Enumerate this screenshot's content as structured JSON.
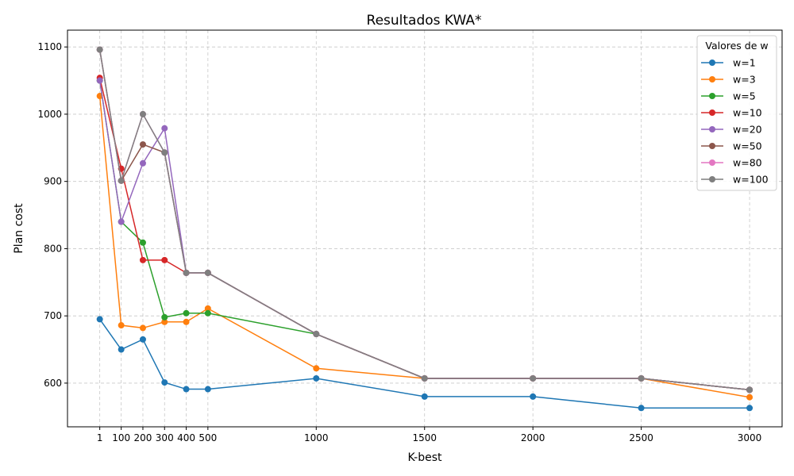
{
  "chart_data": {
    "type": "line",
    "title": "Resultados KWA*",
    "xlabel": "K-best",
    "ylabel": "Plan cost",
    "x": [
      1,
      100,
      200,
      300,
      400,
      500,
      1000,
      1500,
      2000,
      2500,
      3000
    ],
    "xticks": [
      1,
      100,
      200,
      300,
      400,
      500,
      1000,
      1500,
      2000,
      2500,
      3000
    ],
    "yticks": [
      600,
      700,
      800,
      900,
      1000,
      1100
    ],
    "xlim": [
      -148,
      3150
    ],
    "ylim": [
      535,
      1125
    ],
    "grid": true,
    "legend": {
      "title": "Valores de w",
      "placement": "top-right"
    },
    "series": [
      {
        "name": "w=1",
        "color": "#1f77b4",
        "values": [
          695,
          650,
          665,
          601,
          591,
          591,
          607,
          580,
          580,
          563,
          563
        ]
      },
      {
        "name": "w=3",
        "color": "#ff7f0e",
        "values": [
          1027,
          686,
          682,
          691,
          691,
          711,
          622,
          607,
          607,
          607,
          579
        ]
      },
      {
        "name": "w=5",
        "color": "#2ca02c",
        "values": [
          1050,
          840,
          809,
          698,
          704,
          704,
          673,
          607,
          607,
          607,
          590
        ]
      },
      {
        "name": "w=10",
        "color": "#d62728",
        "values": [
          1054,
          919,
          783,
          783,
          764,
          764,
          673,
          607,
          607,
          607,
          590
        ]
      },
      {
        "name": "w=20",
        "color": "#9467bd",
        "values": [
          1050,
          840,
          927,
          979,
          764,
          764,
          673,
          607,
          607,
          607,
          590
        ]
      },
      {
        "name": "w=50",
        "color": "#8c564b",
        "values": [
          1096,
          901,
          955,
          943,
          764,
          764,
          673,
          607,
          607,
          607,
          590
        ]
      },
      {
        "name": "w=80",
        "color": "#e377c2",
        "values": [
          1096,
          901,
          1000,
          943,
          764,
          764,
          673,
          607,
          607,
          607,
          590
        ]
      },
      {
        "name": "w=100",
        "color": "#7f7f7f",
        "values": [
          1096,
          901,
          1000,
          943,
          764,
          764,
          673,
          607,
          607,
          607,
          590
        ]
      }
    ]
  }
}
